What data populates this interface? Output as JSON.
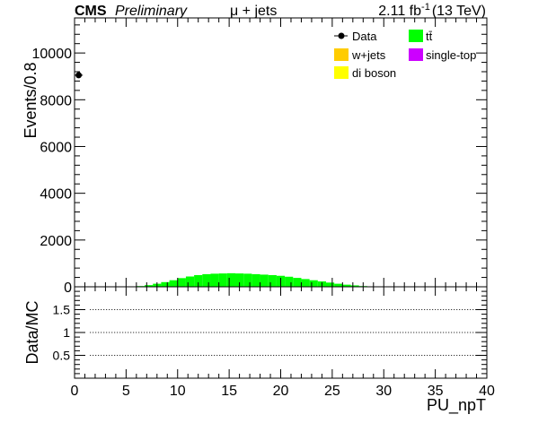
{
  "header": {
    "experiment": "CMS",
    "status": "Preliminary",
    "channel": "μ + jets",
    "lumi_value": "2.11 fb",
    "lumi_exp": "-1",
    "energy": "(13 TeV)"
  },
  "legend": [
    {
      "label": "Data",
      "marker": "dot",
      "color": "#000000"
    },
    {
      "label": "tt̄",
      "marker": "box",
      "color": "#00ff00"
    },
    {
      "label": "w+jets",
      "marker": "box",
      "color": "#ffcc00"
    },
    {
      "label": "single-top",
      "marker": "box",
      "color": "#cc00ff"
    },
    {
      "label": "di boson",
      "marker": "box",
      "color": "#ffff00"
    }
  ],
  "chart_data": [
    {
      "type": "bar",
      "panel": "main",
      "ylabel": "Events/0.8",
      "xlim": [
        0,
        40
      ],
      "ylim": [
        0,
        11500
      ],
      "yticks": [
        0,
        2000,
        4000,
        6000,
        8000,
        10000
      ],
      "ytick_labels": [
        "0",
        "2000",
        "4000",
        "6000",
        "8000",
        "10000"
      ],
      "bin_width": 0.8,
      "series": [
        {
          "name": "tt̄",
          "color": "#00ff00",
          "x": [
            5.2,
            6.0,
            6.8,
            7.6,
            8.4,
            9.2,
            10.0,
            10.8,
            11.6,
            12.4,
            13.2,
            14.0,
            14.8,
            15.6,
            16.4,
            17.2,
            18.0,
            18.8,
            19.6,
            20.4,
            21.2,
            22.0,
            22.8,
            23.6,
            24.4,
            25.2,
            26.0,
            26.8,
            27.6,
            28.4
          ],
          "values": [
            10,
            30,
            70,
            130,
            200,
            280,
            370,
            440,
            500,
            540,
            560,
            570,
            580,
            570,
            560,
            540,
            520,
            500,
            470,
            430,
            380,
            330,
            280,
            230,
            180,
            130,
            90,
            60,
            30,
            10
          ]
        },
        {
          "name": "Data",
          "color": "#000000",
          "x": [
            0.4
          ],
          "values": [
            9050
          ]
        }
      ]
    },
    {
      "type": "line",
      "panel": "ratio",
      "xlabel": "PU_npT",
      "ylabel": "Data/MC",
      "xlim": [
        0,
        40
      ],
      "ylim": [
        0,
        2.0
      ],
      "xticks": [
        0,
        5,
        10,
        15,
        20,
        25,
        30,
        35,
        40
      ],
      "xtick_labels": [
        "0",
        "5",
        "10",
        "15",
        "20",
        "25",
        "30",
        "35",
        "40"
      ],
      "yticks": [
        0.5,
        1,
        1.5
      ],
      "ytick_labels": [
        "0.5",
        "1",
        "1.5"
      ],
      "reference_lines": [
        0.5,
        1.0,
        1.5
      ],
      "grid": false
    }
  ]
}
